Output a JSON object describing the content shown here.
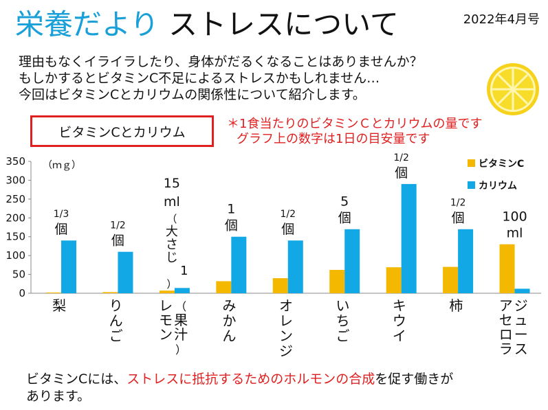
{
  "header": {
    "title_accent": "栄養だより",
    "title_main": "ストレスについて",
    "date": "2022年4月号"
  },
  "intro": [
    "理由もなくイライラしたり、身体がだるくなることはありませんか？",
    "もしかするとビタミンC不足によるストレスかもしれません…",
    "今回はビタミンCとカリウムの関係性について紹介します。"
  ],
  "label_box": "ビタミンCとカリウム",
  "note": [
    "＊1食当たりのビタミンＣとカリウムの量です",
    "グラフ上の数字は1日の目安量です"
  ],
  "footer": {
    "part1": "ビタミンCには、",
    "highlight": "ストレスに抵抗するためのホルモンの合成",
    "part2": "を促す働きが",
    "line2": "あります。"
  },
  "colors": {
    "vitamin_c": "#f5b800",
    "potassium": "#12a8e6",
    "accent": "#1aa0d8",
    "red": "#e02020"
  },
  "icons": {
    "lemon": "lemon-slice-icon"
  },
  "chart_data": {
    "type": "bar",
    "title": "",
    "xlabel": "",
    "ylabel": "（ｍｇ）",
    "ylim": [
      0,
      350
    ],
    "yticks": [
      0,
      50,
      100,
      150,
      200,
      250,
      300,
      350
    ],
    "grid": false,
    "legend_position": "top-right",
    "categories": [
      {
        "lines": [
          "梨"
        ]
      },
      {
        "lines": [
          "りんご"
        ]
      },
      {
        "lines": [
          "レモン",
          "（果汁）"
        ]
      },
      {
        "lines": [
          "みかん"
        ]
      },
      {
        "lines": [
          "オレンジ"
        ]
      },
      {
        "lines": [
          "いちご"
        ]
      },
      {
        "lines": [
          "キウイ"
        ]
      },
      {
        "lines": [
          "柿"
        ]
      },
      {
        "lines": [
          "アセロラ",
          "ジュース"
        ]
      }
    ],
    "series": [
      {
        "name": "ビタミンC",
        "values": [
          2,
          3,
          7,
          32,
          40,
          62,
          69,
          70,
          130
        ]
      },
      {
        "name": "カリウム",
        "values": [
          140,
          110,
          14,
          150,
          140,
          170,
          290,
          170,
          12
        ]
      }
    ],
    "serving_labels": [
      {
        "lines": [
          "1/3",
          "個"
        ],
        "small": [
          true,
          false
        ]
      },
      {
        "lines": [
          "1/2",
          "個"
        ],
        "small": [
          true,
          false
        ]
      },
      {
        "lines": [
          "15",
          "ml",
          "（大さじ1）"
        ],
        "small": [
          false,
          false,
          false
        ],
        "vertical": [
          false,
          false,
          true
        ]
      },
      {
        "lines": [
          "1",
          "個"
        ],
        "small": [
          false,
          false
        ]
      },
      {
        "lines": [
          "1/2",
          "個"
        ],
        "small": [
          true,
          false
        ]
      },
      {
        "lines": [
          "5",
          "個"
        ],
        "small": [
          false,
          false
        ]
      },
      {
        "lines": [
          "1/2",
          "個"
        ],
        "small": [
          true,
          false
        ]
      },
      {
        "lines": [
          "1/2",
          "個"
        ],
        "small": [
          true,
          false
        ]
      },
      {
        "lines": [
          "100",
          "ml"
        ],
        "small": [
          false,
          false
        ]
      }
    ]
  }
}
